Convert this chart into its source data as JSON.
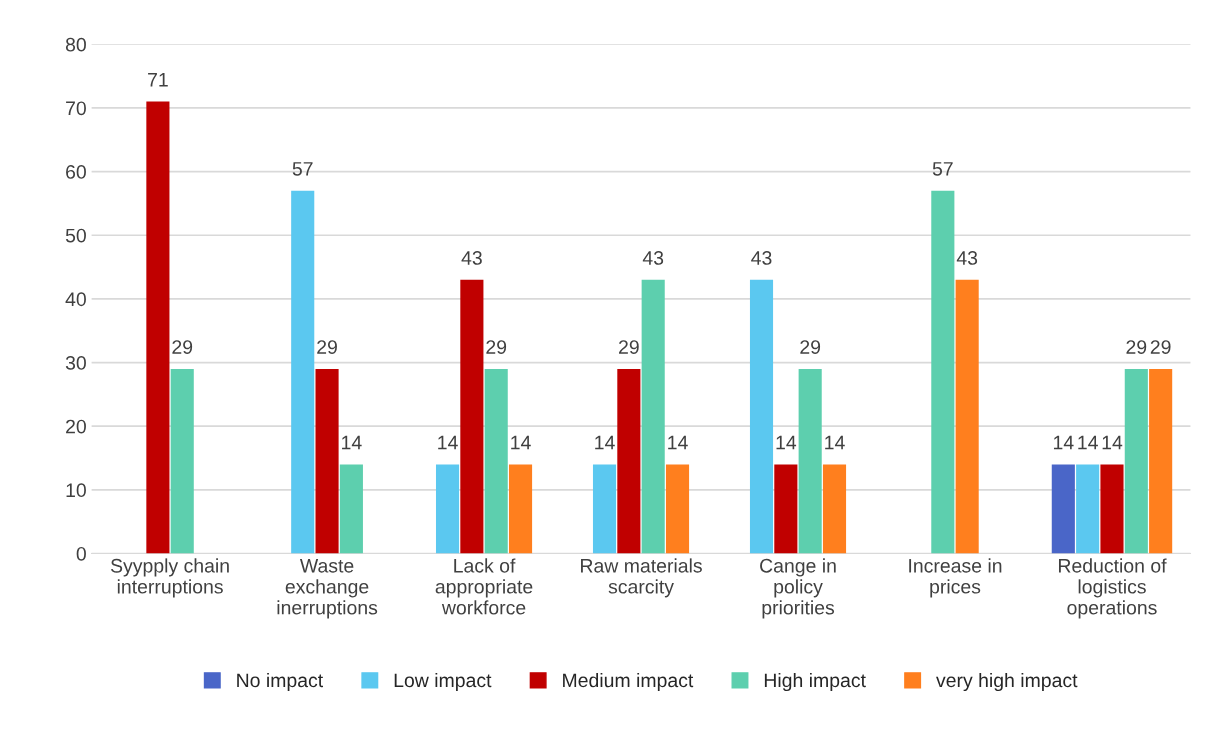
{
  "chart_data": {
    "type": "bar",
    "categories": [
      "Syypply chain\ninterruptions",
      "Waste\nexchange\ninerruptions",
      "Lack of\nappropriate\nworkforce",
      "Raw materials\nscarcity",
      "Cange in\npolicy\npriorities",
      "Increase in\nprices",
      "Reduction of\nlogistics\noperations"
    ],
    "series": [
      {
        "name": "No impact",
        "color": "#4a66c8",
        "values": [
          null,
          null,
          null,
          null,
          null,
          null,
          14
        ]
      },
      {
        "name": "Low impact",
        "color": "#5bc8f0",
        "values": [
          null,
          57,
          14,
          14,
          43,
          null,
          14
        ]
      },
      {
        "name": "Medium impact",
        "color": "#c00000",
        "values": [
          71,
          29,
          43,
          29,
          14,
          null,
          14
        ]
      },
      {
        "name": "High impact",
        "color": "#5dcfae",
        "values": [
          29,
          14,
          29,
          43,
          29,
          57,
          29
        ]
      },
      {
        "name": "very high impact",
        "color": "#ff7f1e",
        "values": [
          null,
          null,
          14,
          14,
          14,
          43,
          29
        ]
      }
    ],
    "ylim": [
      0,
      80
    ],
    "yticks": [
      0,
      10,
      20,
      30,
      40,
      50,
      60,
      70,
      80
    ],
    "grid": "y",
    "legend": "bottom",
    "data_labels": true
  }
}
